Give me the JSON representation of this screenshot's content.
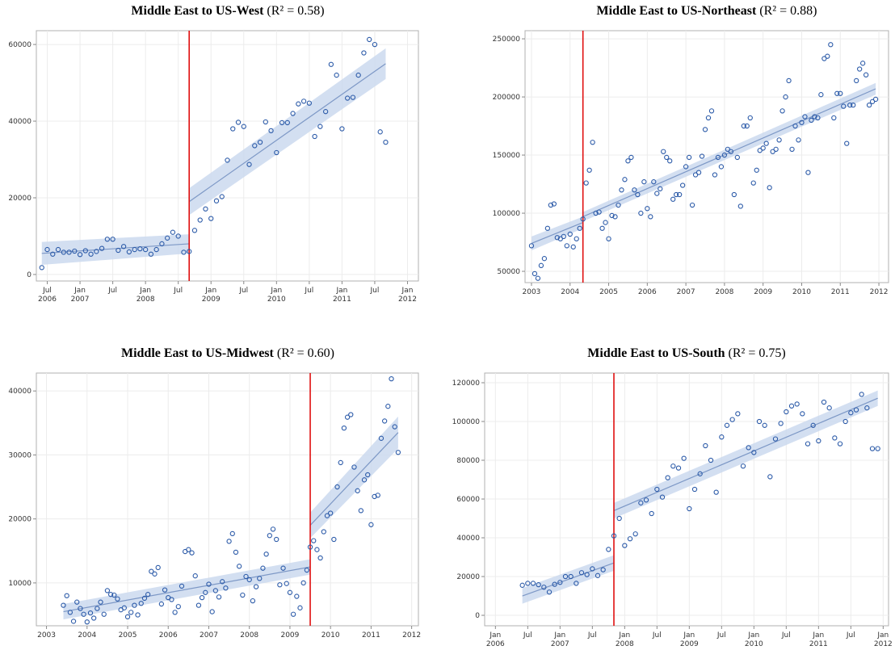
{
  "chart_data": [
    {
      "type": "scatter",
      "title": "Middle East to US-West",
      "title_note": "(R² = 0.58)",
      "x": [
        "2006-06",
        "2006-07",
        "2006-08",
        "2006-09",
        "2006-10",
        "2006-11",
        "2006-12",
        "2007-01",
        "2007-02",
        "2007-03",
        "2007-04",
        "2007-05",
        "2007-06",
        "2007-07",
        "2007-08",
        "2007-09",
        "2007-10",
        "2007-11",
        "2007-12",
        "2008-01",
        "2008-02",
        "2008-03",
        "2008-04",
        "2008-05",
        "2008-06",
        "2008-07",
        "2008-08",
        "2008-09",
        "2008-10",
        "2008-11",
        "2008-12",
        "2009-01",
        "2009-02",
        "2009-03",
        "2009-04",
        "2009-05",
        "2009-06",
        "2009-07",
        "2009-08",
        "2009-09",
        "2009-10",
        "2009-11",
        "2009-12",
        "2010-01",
        "2010-02",
        "2010-03",
        "2010-04",
        "2010-05",
        "2010-06",
        "2010-07",
        "2010-08",
        "2010-09",
        "2010-10",
        "2010-11",
        "2010-12",
        "2011-01",
        "2011-02",
        "2011-03",
        "2011-04",
        "2011-05",
        "2011-06",
        "2011-07",
        "2011-08",
        "2011-09"
      ],
      "values": [
        1800,
        6500,
        5300,
        6500,
        5800,
        5800,
        6100,
        5200,
        6200,
        5300,
        6000,
        6800,
        9200,
        9200,
        6300,
        7300,
        5900,
        6500,
        6700,
        6500,
        5300,
        6500,
        8000,
        9500,
        11000,
        10000,
        5800,
        6000,
        11500,
        14200,
        17100,
        14600,
        19200,
        20300,
        29800,
        38000,
        39700,
        38600,
        28700,
        33600,
        34500,
        39800,
        37500,
        31800,
        39600,
        39600,
        42000,
        44500,
        45200,
        44700,
        36000,
        38600,
        42500,
        54800,
        52000,
        38000,
        46000,
        46200,
        52000,
        57800,
        61300,
        60000,
        37200,
        34500
      ],
      "fit": [
        {
          "x": [
            "2006-06",
            "2008-09"
          ],
          "values": [
            5500,
            8000
          ],
          "lower": [
            2500,
            5500
          ],
          "upper": [
            8500,
            10500
          ]
        },
        {
          "x": [
            "2008-09",
            "2011-09"
          ],
          "values": [
            19000,
            55000
          ],
          "lower": [
            15500,
            51000
          ],
          "upper": [
            22500,
            59000
          ]
        }
      ],
      "cutoff": "2008-09",
      "color": "#2b5aa8",
      "fit_color": "#7d98c6",
      "band_color": "#cbd9ef",
      "cutoff_color": "#e01010",
      "xlim": [
        "2006-05",
        "2012-03"
      ],
      "ylim": [
        -1700,
        63600
      ],
      "yticks": [
        0,
        20000,
        40000,
        60000
      ],
      "xticks": [
        {
          "value": "2006-07",
          "label": "Jul 2006"
        },
        {
          "value": "2007-01",
          "label": "Jan 2007"
        },
        {
          "value": "2007-07",
          "label": "Jul"
        },
        {
          "value": "2008-01",
          "label": "Jan 2008"
        },
        {
          "value": "2008-07",
          "label": "Jul"
        },
        {
          "value": "2009-01",
          "label": "Jan 2009"
        },
        {
          "value": "2009-07",
          "label": "Jul"
        },
        {
          "value": "2010-01",
          "label": "Jan 2010"
        },
        {
          "value": "2010-07",
          "label": "Jul"
        },
        {
          "value": "2011-01",
          "label": "Jan 2011"
        },
        {
          "value": "2011-07",
          "label": "Jul"
        },
        {
          "value": "2012-01",
          "label": "Jan 2012"
        }
      ],
      "grid": true
    },
    {
      "type": "scatter",
      "title": "Middle East to US-Northeast",
      "title_note": "(R² = 0.88)",
      "x": [
        "2003-01",
        "2003-02",
        "2003-03",
        "2003-04",
        "2003-05",
        "2003-06",
        "2003-07",
        "2003-08",
        "2003-09",
        "2003-10",
        "2003-11",
        "2003-12",
        "2004-01",
        "2004-02",
        "2004-03",
        "2004-04",
        "2004-05",
        "2004-06",
        "2004-07",
        "2004-08",
        "2004-09",
        "2004-10",
        "2004-11",
        "2004-12",
        "2005-01",
        "2005-02",
        "2005-03",
        "2005-04",
        "2005-05",
        "2005-06",
        "2005-07",
        "2005-08",
        "2005-09",
        "2005-10",
        "2005-11",
        "2005-12",
        "2006-01",
        "2006-02",
        "2006-03",
        "2006-04",
        "2006-05",
        "2006-06",
        "2006-07",
        "2006-08",
        "2006-09",
        "2006-10",
        "2006-11",
        "2006-12",
        "2007-01",
        "2007-02",
        "2007-03",
        "2007-04",
        "2007-05",
        "2007-06",
        "2007-07",
        "2007-08",
        "2007-09",
        "2007-10",
        "2007-11",
        "2007-12",
        "2008-01",
        "2008-02",
        "2008-03",
        "2008-04",
        "2008-05",
        "2008-06",
        "2008-07",
        "2008-08",
        "2008-09",
        "2008-10",
        "2008-11",
        "2008-12",
        "2009-01",
        "2009-02",
        "2009-03",
        "2009-04",
        "2009-05",
        "2009-06",
        "2009-07",
        "2009-08",
        "2009-09",
        "2009-10",
        "2009-11",
        "2009-12",
        "2010-01",
        "2010-02",
        "2010-03",
        "2010-04",
        "2010-05",
        "2010-06",
        "2010-07",
        "2010-08",
        "2010-09",
        "2010-10",
        "2010-11",
        "2010-12",
        "2011-01",
        "2011-02",
        "2011-03",
        "2011-04",
        "2011-05",
        "2011-06",
        "2011-07",
        "2011-08",
        "2011-09",
        "2011-10",
        "2011-11",
        "2011-12"
      ],
      "values": [
        72000,
        48000,
        44000,
        55000,
        61000,
        87000,
        107000,
        108000,
        79000,
        78000,
        80000,
        72000,
        82000,
        71000,
        78000,
        87000,
        95000,
        126000,
        137000,
        161000,
        100000,
        101000,
        87000,
        92000,
        78000,
        98000,
        97000,
        107000,
        120000,
        129000,
        145000,
        148000,
        120000,
        116000,
        100000,
        127000,
        104000,
        97000,
        127000,
        117000,
        121000,
        153000,
        148000,
        145000,
        112000,
        116000,
        116000,
        124000,
        140000,
        148000,
        107000,
        133000,
        135000,
        149000,
        172000,
        182000,
        188000,
        133000,
        148000,
        140000,
        150000,
        155000,
        153000,
        116000,
        148000,
        106000,
        175000,
        175000,
        182000,
        126000,
        137000,
        154000,
        156000,
        160000,
        122000,
        153000,
        155000,
        163000,
        188000,
        200000,
        214000,
        155000,
        175000,
        163000,
        178000,
        183000,
        135000,
        180000,
        183000,
        182000,
        202000,
        233000,
        235000,
        245000,
        182000,
        203000,
        203000,
        192000,
        160000,
        193000,
        193000,
        214000,
        224000,
        229000,
        219000,
        193000,
        196000,
        198000
      ],
      "fit": [
        {
          "x": [
            "2003-01",
            "2004-05"
          ],
          "values": [
            74000,
            92000
          ],
          "lower": [
            68000,
            87000
          ],
          "upper": [
            80000,
            97000
          ]
        },
        {
          "x": [
            "2004-05",
            "2011-12"
          ],
          "values": [
            97000,
            207000
          ],
          "lower": [
            93000,
            202000
          ],
          "upper": [
            101000,
            212000
          ]
        }
      ],
      "cutoff": "2004-05",
      "color": "#2b5aa8",
      "fit_color": "#7d98c6",
      "band_color": "#cbd9ef",
      "cutoff_color": "#e01010",
      "xlim": [
        "2002-11",
        "2012-04"
      ],
      "ylim": [
        40300,
        257000
      ],
      "yticks": [
        50000,
        100000,
        150000,
        200000,
        250000
      ],
      "xticks": [
        {
          "value": "2003-01",
          "label": "2003"
        },
        {
          "value": "2004-01",
          "label": "2004"
        },
        {
          "value": "2005-01",
          "label": "2005"
        },
        {
          "value": "2006-01",
          "label": "2006"
        },
        {
          "value": "2007-01",
          "label": "2007"
        },
        {
          "value": "2008-01",
          "label": "2008"
        },
        {
          "value": "2009-01",
          "label": "2009"
        },
        {
          "value": "2010-01",
          "label": "2010"
        },
        {
          "value": "2011-01",
          "label": "2011"
        },
        {
          "value": "2012-01",
          "label": "2012"
        }
      ],
      "grid": true
    },
    {
      "type": "scatter",
      "title": "Middle East to US-Midwest",
      "title_note": "(R² = 0.60)",
      "x": [
        "2003-06",
        "2003-07",
        "2003-08",
        "2003-09",
        "2003-10",
        "2003-11",
        "2003-12",
        "2004-01",
        "2004-02",
        "2004-03",
        "2004-04",
        "2004-05",
        "2004-06",
        "2004-07",
        "2004-08",
        "2004-09",
        "2004-10",
        "2004-11",
        "2004-12",
        "2005-01",
        "2005-02",
        "2005-03",
        "2005-04",
        "2005-05",
        "2005-06",
        "2005-07",
        "2005-08",
        "2005-09",
        "2005-10",
        "2005-11",
        "2005-12",
        "2006-01",
        "2006-02",
        "2006-03",
        "2006-04",
        "2006-05",
        "2006-06",
        "2006-07",
        "2006-08",
        "2006-09",
        "2006-10",
        "2006-11",
        "2006-12",
        "2007-01",
        "2007-02",
        "2007-03",
        "2007-04",
        "2007-05",
        "2007-06",
        "2007-07",
        "2007-08",
        "2007-09",
        "2007-10",
        "2007-11",
        "2007-12",
        "2008-01",
        "2008-02",
        "2008-03",
        "2008-04",
        "2008-05",
        "2008-06",
        "2008-07",
        "2008-08",
        "2008-09",
        "2008-10",
        "2008-11",
        "2008-12",
        "2009-01",
        "2009-02",
        "2009-03",
        "2009-04",
        "2009-05",
        "2009-06",
        "2009-07",
        "2009-08",
        "2009-09",
        "2009-10",
        "2009-11",
        "2009-12",
        "2010-01",
        "2010-02",
        "2010-03",
        "2010-04",
        "2010-05",
        "2010-06",
        "2010-07",
        "2010-08",
        "2010-09",
        "2010-10",
        "2010-11",
        "2010-12",
        "2011-01",
        "2011-02",
        "2011-03",
        "2011-04",
        "2011-05",
        "2011-06",
        "2011-07",
        "2011-08",
        "2011-09"
      ],
      "values": [
        6500,
        8000,
        5400,
        4000,
        7000,
        6000,
        5100,
        3900,
        5300,
        4500,
        6000,
        7000,
        5100,
        8800,
        8200,
        8100,
        7500,
        5800,
        6100,
        4700,
        5400,
        6500,
        5000,
        6800,
        7600,
        8200,
        11800,
        11400,
        12400,
        6700,
        8900,
        7700,
        7400,
        5400,
        6300,
        9500,
        14900,
        15200,
        14700,
        11100,
        6500,
        7700,
        8500,
        9800,
        5500,
        8800,
        7800,
        10200,
        9200,
        16500,
        17700,
        14800,
        12600,
        8100,
        11000,
        10500,
        7200,
        9400,
        10700,
        12300,
        14500,
        17400,
        18400,
        16800,
        9700,
        12300,
        9900,
        8500,
        5100,
        7900,
        6100,
        10000,
        12000,
        15600,
        16600,
        15200,
        13900,
        18000,
        20500,
        20900,
        16800,
        25000,
        28800,
        34200,
        35900,
        36300,
        28100,
        24400,
        21300,
        26100,
        26900,
        19100,
        23500,
        23700,
        32600,
        35300,
        37600,
        41900,
        34400,
        30400
      ],
      "fit": [
        {
          "x": [
            "2003-06",
            "2009-07"
          ],
          "values": [
            5500,
            12500
          ],
          "lower": [
            4300,
            11300
          ],
          "upper": [
            6700,
            13700
          ]
        },
        {
          "x": [
            "2009-07",
            "2011-09"
          ],
          "values": [
            19000,
            33500
          ],
          "lower": [
            17000,
            31000
          ],
          "upper": [
            21000,
            36000
          ]
        }
      ],
      "cutoff": "2009-07",
      "color": "#2b5aa8",
      "fit_color": "#7d98c6",
      "band_color": "#cbd9ef",
      "cutoff_color": "#e01010",
      "xlim": [
        "2002-10",
        "2012-03"
      ],
      "ylim": [
        3300,
        42800
      ],
      "yticks": [
        10000,
        20000,
        30000,
        40000
      ],
      "xticks": [
        {
          "value": "2003-01",
          "label": "2003"
        },
        {
          "value": "2004-01",
          "label": "2004"
        },
        {
          "value": "2005-01",
          "label": "2005"
        },
        {
          "value": "2006-01",
          "label": "2006"
        },
        {
          "value": "2007-01",
          "label": "2007"
        },
        {
          "value": "2008-01",
          "label": "2008"
        },
        {
          "value": "2009-01",
          "label": "2009"
        },
        {
          "value": "2010-01",
          "label": "2010"
        },
        {
          "value": "2011-01",
          "label": "2011"
        },
        {
          "value": "2012-01",
          "label": "2012"
        }
      ],
      "grid": true
    },
    {
      "type": "scatter",
      "title": "Middle East to US-South",
      "title_note": "(R² = 0.75)",
      "x": [
        "2006-06",
        "2006-07",
        "2006-08",
        "2006-09",
        "2006-10",
        "2006-11",
        "2006-12",
        "2007-01",
        "2007-02",
        "2007-03",
        "2007-04",
        "2007-05",
        "2007-06",
        "2007-07",
        "2007-08",
        "2007-09",
        "2007-10",
        "2007-11",
        "2007-12",
        "2008-01",
        "2008-02",
        "2008-03",
        "2008-04",
        "2008-05",
        "2008-06",
        "2008-07",
        "2008-08",
        "2008-09",
        "2008-10",
        "2008-11",
        "2008-12",
        "2009-01",
        "2009-02",
        "2009-03",
        "2009-04",
        "2009-05",
        "2009-06",
        "2009-07",
        "2009-08",
        "2009-09",
        "2009-10",
        "2009-11",
        "2009-12",
        "2010-01",
        "2010-02",
        "2010-03",
        "2010-04",
        "2010-05",
        "2010-06",
        "2010-07",
        "2010-08",
        "2010-09",
        "2010-10",
        "2010-11",
        "2010-12",
        "2011-01",
        "2011-02",
        "2011-03",
        "2011-04",
        "2011-05",
        "2011-06",
        "2011-07",
        "2011-08",
        "2011-09",
        "2011-10",
        "2011-11",
        "2011-12"
      ],
      "values": [
        15500,
        16500,
        16500,
        15800,
        14500,
        12000,
        16000,
        17000,
        20000,
        20000,
        16500,
        22000,
        21000,
        24000,
        20500,
        23500,
        34000,
        41000,
        50000,
        36000,
        39500,
        42000,
        58000,
        59500,
        52500,
        65000,
        61000,
        71000,
        77000,
        76000,
        81000,
        55000,
        65000,
        73000,
        87500,
        80000,
        63500,
        92000,
        98000,
        101000,
        104000,
        77000,
        86500,
        84000,
        100000,
        98000,
        71500,
        91000,
        99000,
        105000,
        108000,
        109000,
        104000,
        88500,
        98000,
        90000,
        110000,
        107000,
        91500,
        88500,
        100000,
        104500,
        106000,
        114000,
        107000,
        86000,
        86000
      ],
      "fit": [
        {
          "x": [
            "2006-06",
            "2007-11"
          ],
          "values": [
            10000,
            27000
          ],
          "lower": [
            6000,
            23000
          ],
          "upper": [
            14000,
            31000
          ]
        },
        {
          "x": [
            "2007-11",
            "2011-12"
          ],
          "values": [
            54000,
            112000
          ],
          "lower": [
            50000,
            108000
          ],
          "upper": [
            58000,
            116000
          ]
        }
      ],
      "cutoff": "2007-11",
      "color": "#2b5aa8",
      "fit_color": "#7d98c6",
      "band_color": "#cbd9ef",
      "cutoff_color": "#e01010",
      "xlim": [
        "2005-11",
        "2012-02"
      ],
      "ylim": [
        -5400,
        125000
      ],
      "yticks": [
        0,
        20000,
        40000,
        60000,
        80000,
        100000,
        120000
      ],
      "xticks": [
        {
          "value": "2006-01",
          "label": "Jan 2006"
        },
        {
          "value": "2006-07",
          "label": "Jul"
        },
        {
          "value": "2007-01",
          "label": "Jan 2007"
        },
        {
          "value": "2007-07",
          "label": "Jul"
        },
        {
          "value": "2008-01",
          "label": "Jan 2008"
        },
        {
          "value": "2008-07",
          "label": "Jul"
        },
        {
          "value": "2009-01",
          "label": "Jan 2009"
        },
        {
          "value": "2009-07",
          "label": "Jul"
        },
        {
          "value": "2010-01",
          "label": "Jan 2010"
        },
        {
          "value": "2010-07",
          "label": "Jul"
        },
        {
          "value": "2011-01",
          "label": "Jan 2011"
        },
        {
          "value": "2011-07",
          "label": "Jul"
        },
        {
          "value": "2012-01",
          "label": "Jan 2012"
        }
      ],
      "grid": true
    }
  ]
}
